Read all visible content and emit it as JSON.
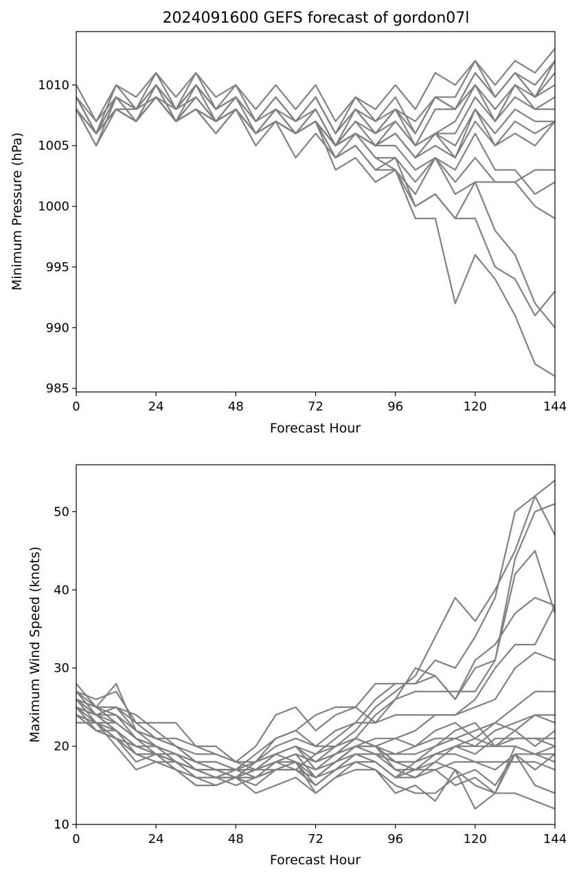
{
  "chart_data": [
    {
      "type": "line",
      "title": "2024091600 GEFS forecast of gordon07l",
      "xlabel": "Forecast Hour",
      "ylabel": "Minimum Pressure (hPa)",
      "xlim": [
        0,
        144
      ],
      "ylim": [
        984.7,
        1014.4
      ],
      "xticks": [
        0,
        24,
        48,
        72,
        96,
        120,
        144
      ],
      "yticks": [
        985,
        990,
        995,
        1000,
        1005,
        1010
      ],
      "grid": false,
      "line_color": "#808080",
      "x": [
        0,
        6,
        12,
        18,
        24,
        30,
        36,
        42,
        48,
        54,
        60,
        66,
        72,
        78,
        84,
        90,
        96,
        102,
        108,
        114,
        120,
        126,
        132,
        138,
        144
      ],
      "series": [
        {
          "values": [
            1010,
            1007,
            1010,
            1009,
            1011,
            1009,
            1011,
            1009,
            1010,
            1008,
            1010,
            1008,
            1010,
            1007,
            1009,
            1008,
            1010,
            1008,
            1011,
            1010,
            1012,
            1010,
            1012,
            1011,
            1013
          ]
        },
        {
          "values": [
            1009,
            1006,
            1010,
            1008,
            1011,
            1008,
            1011,
            1008,
            1010,
            1007,
            1009,
            1007,
            1009,
            1006,
            1009,
            1007,
            1009,
            1006,
            1009,
            1009,
            1012,
            1009,
            1011,
            1010,
            1012
          ]
        },
        {
          "values": [
            1009,
            1007,
            1009,
            1008,
            1010,
            1008,
            1010,
            1008,
            1009,
            1007,
            1009,
            1007,
            1009,
            1006,
            1008,
            1007,
            1008,
            1007,
            1009,
            1008,
            1011,
            1009,
            1011,
            1009,
            1012
          ]
        },
        {
          "values": [
            1008,
            1006,
            1009,
            1008,
            1010,
            1008,
            1010,
            1008,
            1009,
            1007,
            1009,
            1007,
            1009,
            1006,
            1008,
            1006,
            1008,
            1006,
            1009,
            1008,
            1011,
            1009,
            1011,
            1009,
            1011
          ]
        },
        {
          "values": [
            1009,
            1006,
            1009,
            1007,
            1010,
            1007,
            1010,
            1007,
            1009,
            1007,
            1008,
            1007,
            1008,
            1005,
            1008,
            1006,
            1008,
            1005,
            1008,
            1008,
            1010,
            1008,
            1010,
            1009,
            1010
          ]
        },
        {
          "values": [
            1008,
            1005,
            1009,
            1007,
            1010,
            1007,
            1009,
            1007,
            1009,
            1006,
            1008,
            1006,
            1008,
            1005,
            1007,
            1006,
            1007,
            1005,
            1006,
            1007,
            1010,
            1007,
            1010,
            1008,
            1009
          ]
        },
        {
          "values": [
            1009,
            1006,
            1008,
            1008,
            1009,
            1008,
            1009,
            1007,
            1008,
            1006,
            1008,
            1006,
            1008,
            1005,
            1007,
            1005,
            1007,
            1005,
            1006,
            1006,
            1009,
            1007,
            1009,
            1008,
            1008
          ]
        },
        {
          "values": [
            1008,
            1006,
            1008,
            1007,
            1009,
            1007,
            1009,
            1007,
            1008,
            1006,
            1007,
            1006,
            1007,
            1005,
            1006,
            1005,
            1006,
            1004,
            1006,
            1005,
            1008,
            1006,
            1008,
            1007,
            1007
          ]
        },
        {
          "values": [
            1008,
            1005,
            1008,
            1007,
            1009,
            1007,
            1008,
            1006,
            1008,
            1005,
            1007,
            1006,
            1007,
            1004,
            1006,
            1005,
            1006,
            1004,
            1006,
            1004,
            1008,
            1005,
            1007,
            1006,
            1007
          ]
        },
        {
          "values": [
            1008,
            1006,
            1008,
            1007,
            1009,
            1007,
            1008,
            1007,
            1008,
            1006,
            1007,
            1006,
            1007,
            1005,
            1006,
            1005,
            1006,
            1004,
            1005,
            1004,
            1007,
            1005,
            1006,
            1005,
            1007
          ]
        },
        {
          "values": [
            1009,
            1006,
            1008,
            1007,
            1009,
            1007,
            1008,
            1006,
            1008,
            1006,
            1007,
            1006,
            1007,
            1004,
            1005,
            1003,
            1003,
            1001,
            1004,
            1003,
            1006,
            1003,
            1003,
            1001,
            1002
          ]
        },
        {
          "values": [
            1008,
            1006,
            1008,
            1007,
            1009,
            1007,
            1008,
            1007,
            1008,
            1006,
            1007,
            1004,
            1006,
            1004,
            1005,
            1003,
            1004,
            1002,
            1004,
            1002,
            1004,
            1002,
            1002,
            1003,
            1003
          ]
        },
        {
          "values": [
            1008,
            1006,
            1008,
            1007,
            1009,
            1007,
            1008,
            1007,
            1008,
            1006,
            1007,
            1006,
            1007,
            1003,
            1004,
            1002,
            1003,
            1000,
            1001,
            999,
            1002,
            998,
            996,
            992,
            990
          ]
        },
        {
          "values": [
            1008,
            1006,
            1008,
            1007,
            1009,
            1007,
            1008,
            1007,
            1008,
            1006,
            1007,
            1006,
            1007,
            1005,
            1006,
            1004,
            1003,
            999,
            999,
            992,
            996,
            994,
            991,
            987,
            986
          ]
        },
        {
          "values": [
            1008,
            1006,
            1008,
            1007,
            1009,
            1007,
            1008,
            1007,
            1008,
            1006,
            1007,
            1006,
            1007,
            1005,
            1006,
            1004,
            1004,
            1000,
            1001,
            999,
            999,
            995,
            994,
            991,
            993
          ]
        },
        {
          "values": [
            1008,
            1006,
            1008,
            1007,
            1009,
            1007,
            1008,
            1007,
            1008,
            1006,
            1007,
            1006,
            1007,
            1005,
            1006,
            1005,
            1005,
            1003,
            1004,
            1001,
            1002,
            1002,
            1002,
            1000,
            999
          ]
        }
      ]
    },
    {
      "type": "line",
      "title": "",
      "xlabel": "Forecast Hour",
      "ylabel": "Maximum Wind Speed (knots)",
      "xlim": [
        0,
        144
      ],
      "ylim": [
        10,
        56
      ],
      "xticks": [
        0,
        24,
        48,
        72,
        96,
        120,
        144
      ],
      "yticks": [
        10,
        20,
        30,
        40,
        50
      ],
      "grid": false,
      "line_color": "#808080",
      "x": [
        0,
        6,
        12,
        18,
        24,
        30,
        36,
        42,
        48,
        54,
        60,
        66,
        72,
        78,
        84,
        90,
        96,
        102,
        108,
        114,
        120,
        126,
        132,
        138,
        144
      ],
      "series": [
        {
          "values": [
            28,
            25,
            28,
            22,
            20,
            19,
            17,
            17,
            16,
            17,
            18,
            19,
            18,
            20,
            22,
            25,
            27,
            29,
            34,
            39,
            36,
            40,
            45,
            52,
            47
          ]
        },
        {
          "values": [
            27,
            26,
            27,
            23,
            21,
            20,
            18,
            17,
            16,
            18,
            19,
            20,
            19,
            21,
            23,
            26,
            28,
            28,
            31,
            30,
            34,
            39,
            50,
            52,
            54
          ]
        },
        {
          "values": [
            26,
            24,
            25,
            23,
            23,
            23,
            20,
            19,
            18,
            18,
            21,
            22,
            24,
            25,
            25,
            28,
            28,
            28,
            29,
            26,
            31,
            33,
            37,
            39,
            38
          ]
        },
        {
          "values": [
            26,
            25,
            25,
            24,
            22,
            20,
            19,
            19,
            18,
            17,
            18,
            17,
            19,
            20,
            21,
            24,
            26,
            27,
            27,
            27,
            27,
            31,
            44,
            50,
            51
          ]
        },
        {
          "values": [
            25,
            24,
            25,
            22,
            21,
            21,
            20,
            20,
            18,
            20,
            24,
            25,
            22,
            24,
            25,
            23,
            26,
            30,
            29,
            26,
            30,
            31,
            42,
            45,
            37
          ]
        },
        {
          "values": [
            27,
            25,
            24,
            21,
            20,
            19,
            18,
            18,
            17,
            19,
            21,
            22,
            20,
            22,
            23,
            23,
            24,
            24,
            24,
            24,
            26,
            30,
            33,
            33,
            38
          ]
        },
        {
          "values": [
            25,
            24,
            24,
            22,
            21,
            20,
            18,
            17,
            17,
            18,
            20,
            21,
            20,
            20,
            21,
            20,
            21,
            22,
            24,
            24,
            25,
            26,
            30,
            32,
            31
          ]
        },
        {
          "values": [
            24,
            23,
            23,
            21,
            20,
            19,
            18,
            18,
            17,
            16,
            18,
            19,
            18,
            19,
            20,
            21,
            21,
            20,
            22,
            23,
            21,
            23,
            25,
            27,
            27
          ]
        },
        {
          "values": [
            24,
            22,
            22,
            20,
            19,
            19,
            17,
            16,
            16,
            17,
            19,
            20,
            18,
            19,
            21,
            20,
            18,
            17,
            19,
            20,
            20,
            22,
            23,
            24,
            24
          ]
        },
        {
          "values": [
            23,
            23,
            22,
            20,
            20,
            18,
            16,
            16,
            17,
            18,
            19,
            20,
            17,
            18,
            20,
            19,
            19,
            20,
            21,
            21,
            22,
            23,
            22,
            24,
            23
          ]
        },
        {
          "values": [
            25,
            24,
            23,
            21,
            19,
            18,
            17,
            17,
            16,
            17,
            19,
            18,
            17,
            19,
            21,
            20,
            17,
            16,
            18,
            20,
            19,
            21,
            21,
            21,
            20
          ]
        },
        {
          "values": [
            26,
            23,
            22,
            19,
            18,
            18,
            17,
            16,
            16,
            16,
            18,
            19,
            16,
            18,
            20,
            19,
            18,
            18,
            20,
            22,
            23,
            20,
            22,
            20,
            22
          ]
        },
        {
          "values": [
            25,
            22,
            21,
            18,
            19,
            17,
            16,
            15,
            16,
            17,
            17,
            18,
            15,
            17,
            19,
            18,
            16,
            18,
            19,
            19,
            18,
            17,
            19,
            19,
            19
          ]
        },
        {
          "values": [
            24,
            23,
            20,
            17,
            18,
            17,
            15,
            15,
            16,
            15,
            17,
            18,
            14,
            16,
            18,
            17,
            14,
            15,
            13,
            17,
            15,
            14,
            14,
            13,
            12
          ]
        },
        {
          "values": [
            23,
            23,
            21,
            19,
            18,
            17,
            15,
            15,
            16,
            14,
            15,
            16,
            14,
            16,
            17,
            17,
            15,
            14,
            14,
            16,
            17,
            15,
            19,
            15,
            14
          ]
        },
        {
          "values": [
            24,
            22,
            21,
            19,
            19,
            18,
            16,
            16,
            15,
            16,
            17,
            17,
            16,
            17,
            19,
            18,
            16,
            17,
            18,
            17,
            12,
            14,
            20,
            19,
            18
          ]
        },
        {
          "values": [
            25,
            23,
            21,
            20,
            19,
            18,
            17,
            16,
            16,
            16,
            17,
            17,
            15,
            17,
            18,
            18,
            16,
            16,
            17,
            15,
            16,
            14,
            19,
            17,
            19
          ]
        },
        {
          "values": [
            26,
            24,
            22,
            20,
            19,
            18,
            17,
            16,
            17,
            16,
            17,
            18,
            16,
            18,
            19,
            19,
            17,
            17,
            17,
            18,
            18,
            18,
            18,
            18,
            17
          ]
        },
        {
          "values": [
            27,
            24,
            22,
            20,
            20,
            18,
            17,
            17,
            17,
            17,
            18,
            18,
            17,
            18,
            20,
            20,
            18,
            18,
            19,
            20,
            21,
            20,
            20,
            19,
            20
          ]
        },
        {
          "values": [
            26,
            25,
            23,
            21,
            20,
            19,
            18,
            17,
            17,
            17,
            18,
            19,
            18,
            19,
            20,
            20,
            19,
            19,
            20,
            21,
            20,
            20,
            21,
            21,
            21
          ]
        }
      ]
    }
  ]
}
